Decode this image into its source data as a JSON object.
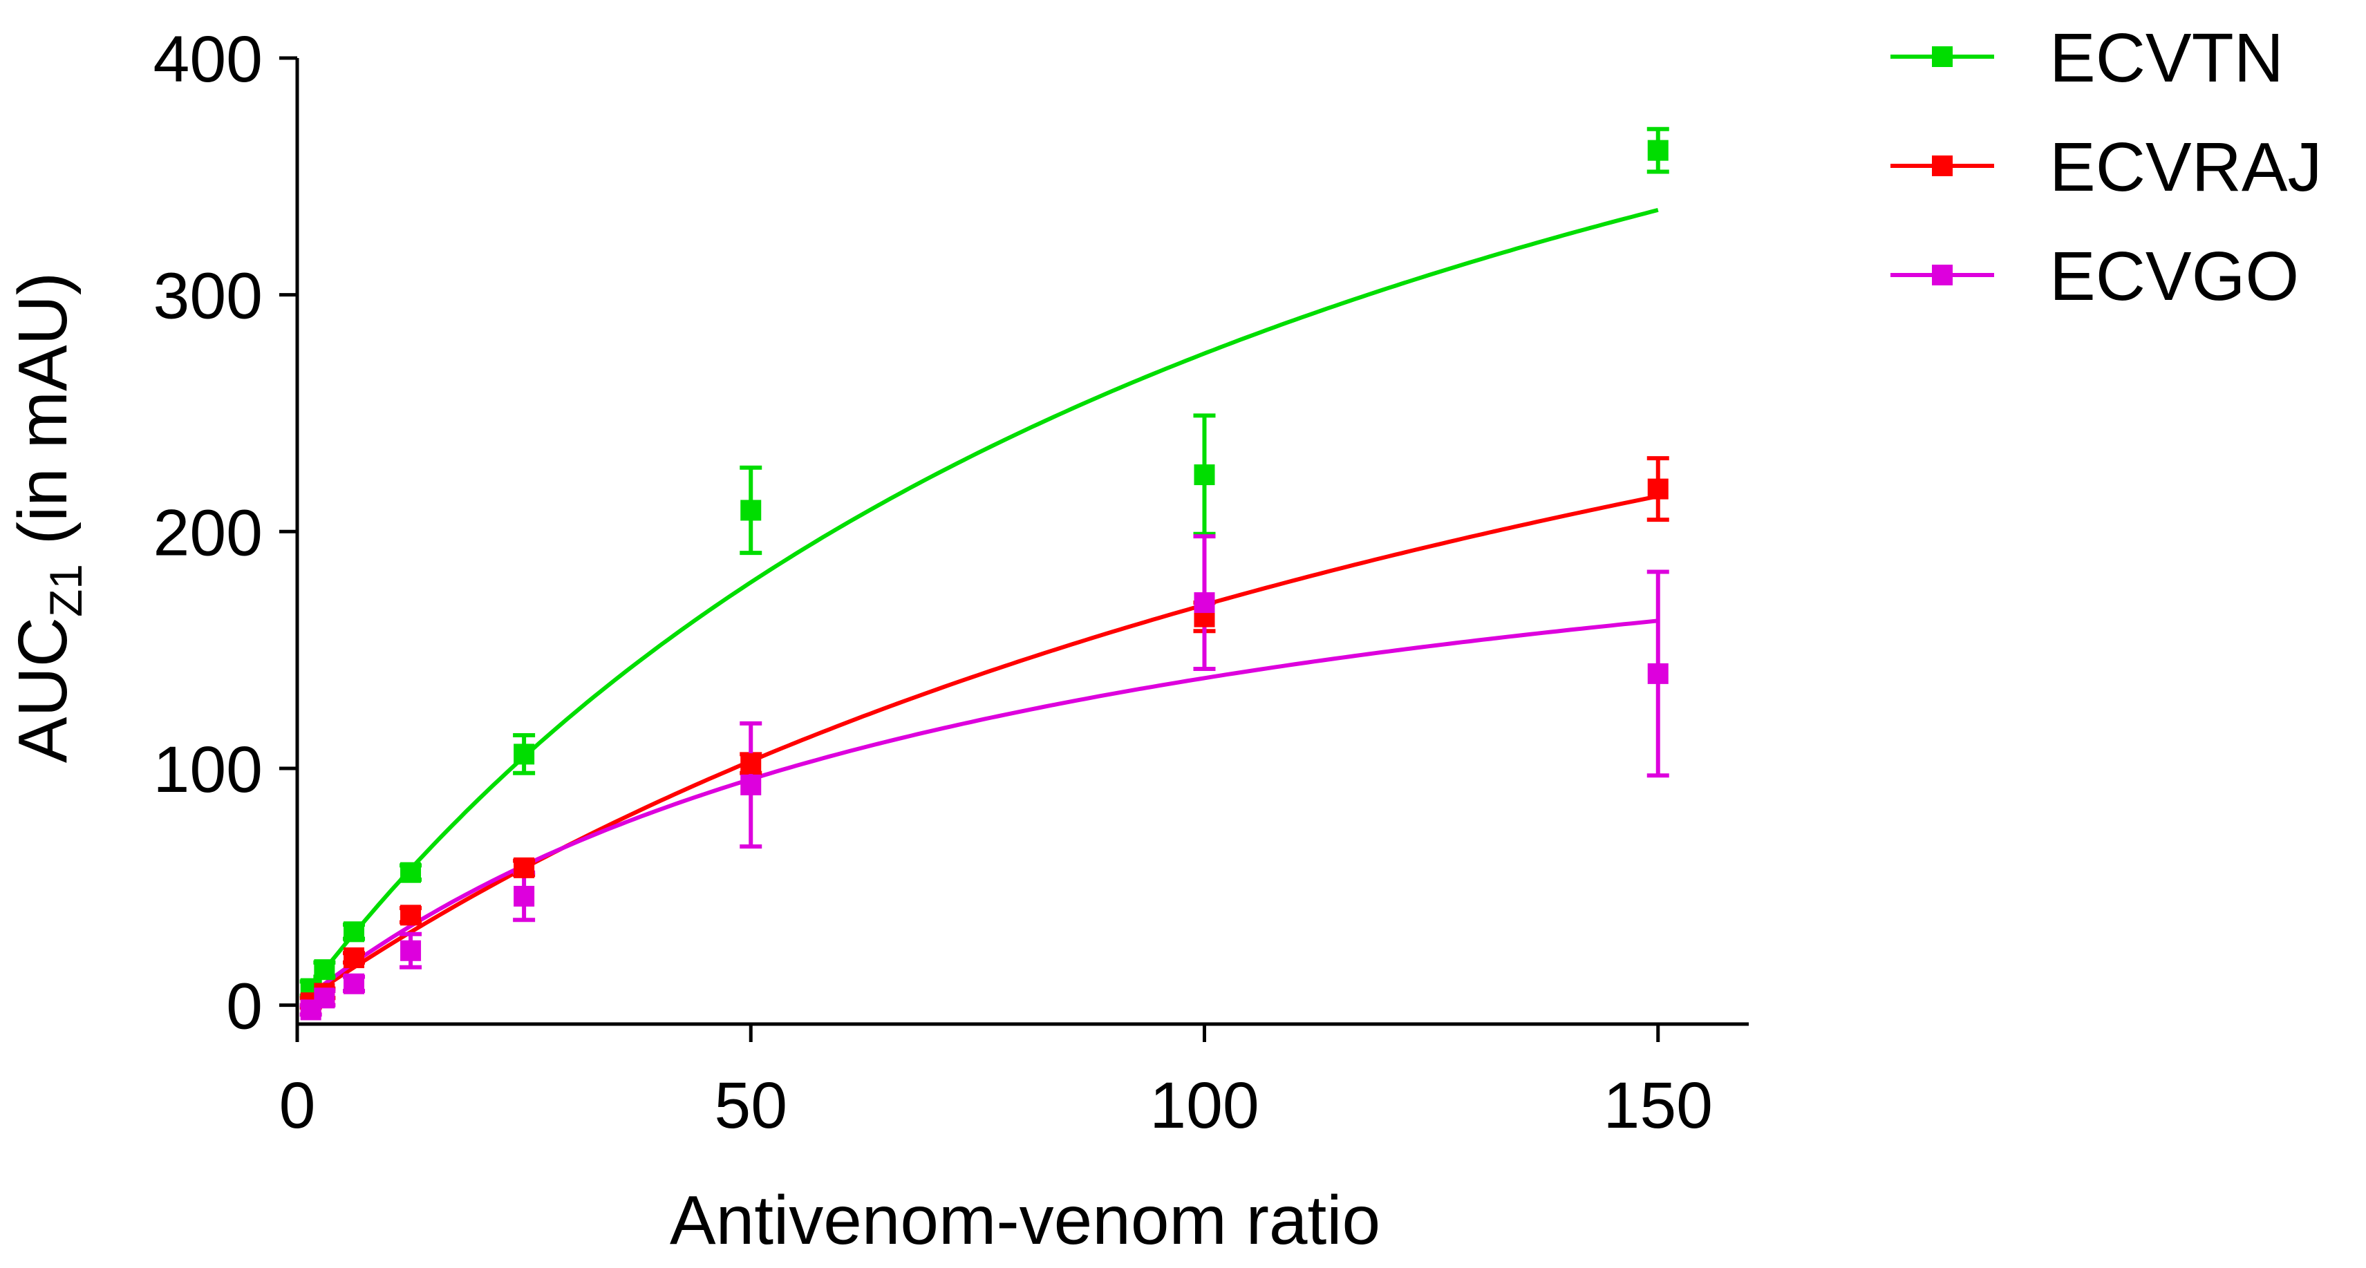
{
  "chart_data": {
    "type": "scatter",
    "title": "",
    "xlabel": "Antivenom-venom ratio",
    "ylabel_main": "AUC",
    "ylabel_sub": "Z1",
    "ylabel_suffix": " (in mAU)",
    "xlim": [
      0,
      160
    ],
    "ylim": [
      -8,
      400
    ],
    "x_ticks": [
      0,
      50,
      100,
      150
    ],
    "x_tick_labels": [
      "0",
      "50",
      "100",
      "150"
    ],
    "y_ticks": [
      0,
      100,
      200,
      300,
      400
    ],
    "y_tick_labels": [
      "0",
      "100",
      "200",
      "300",
      "400"
    ],
    "legend_position": "top-right, outside plot",
    "series": [
      {
        "name": "ECVTN",
        "color": "#00dd00",
        "points": [
          {
            "x": 1.5,
            "y": 7,
            "err": 3
          },
          {
            "x": 3,
            "y": 15,
            "err": 3
          },
          {
            "x": 6.25,
            "y": 31,
            "err": 3
          },
          {
            "x": 12.5,
            "y": 56,
            "err": 3
          },
          {
            "x": 25,
            "y": 106,
            "err": 8
          },
          {
            "x": 50,
            "y": 209,
            "err": 18
          },
          {
            "x": 100,
            "y": 224,
            "err": 25
          },
          {
            "x": 150,
            "y": 361,
            "err": 9
          }
        ],
        "fit": {
          "vmax": 600,
          "k": 118
        }
      },
      {
        "name": "ECVRAJ",
        "color": "#ff0000",
        "points": [
          {
            "x": 1.5,
            "y": 1,
            "err": 2
          },
          {
            "x": 3,
            "y": 5,
            "err": 2
          },
          {
            "x": 6.25,
            "y": 20,
            "err": 2
          },
          {
            "x": 12.5,
            "y": 38,
            "err": 3
          },
          {
            "x": 25,
            "y": 58,
            "err": 3
          },
          {
            "x": 50,
            "y": 102,
            "err": 4
          },
          {
            "x": 100,
            "y": 164,
            "err": 6
          },
          {
            "x": 150,
            "y": 218,
            "err": 13
          }
        ],
        "fit": {
          "vmax": 470,
          "k": 178
        }
      },
      {
        "name": "ECVGO",
        "color": "#dd00dd",
        "points": [
          {
            "x": 1.5,
            "y": -2,
            "err": 2
          },
          {
            "x": 3,
            "y": 3,
            "err": 3
          },
          {
            "x": 6.25,
            "y": 9,
            "err": 3
          },
          {
            "x": 12.5,
            "y": 23,
            "err": 7
          },
          {
            "x": 25,
            "y": 46,
            "err": 10
          },
          {
            "x": 50,
            "y": 93,
            "err": 26
          },
          {
            "x": 100,
            "y": 170,
            "err": 28
          },
          {
            "x": 150,
            "y": 140,
            "err": 43
          }
        ],
        "fit": {
          "vmax": 250,
          "k": 81
        }
      }
    ]
  }
}
